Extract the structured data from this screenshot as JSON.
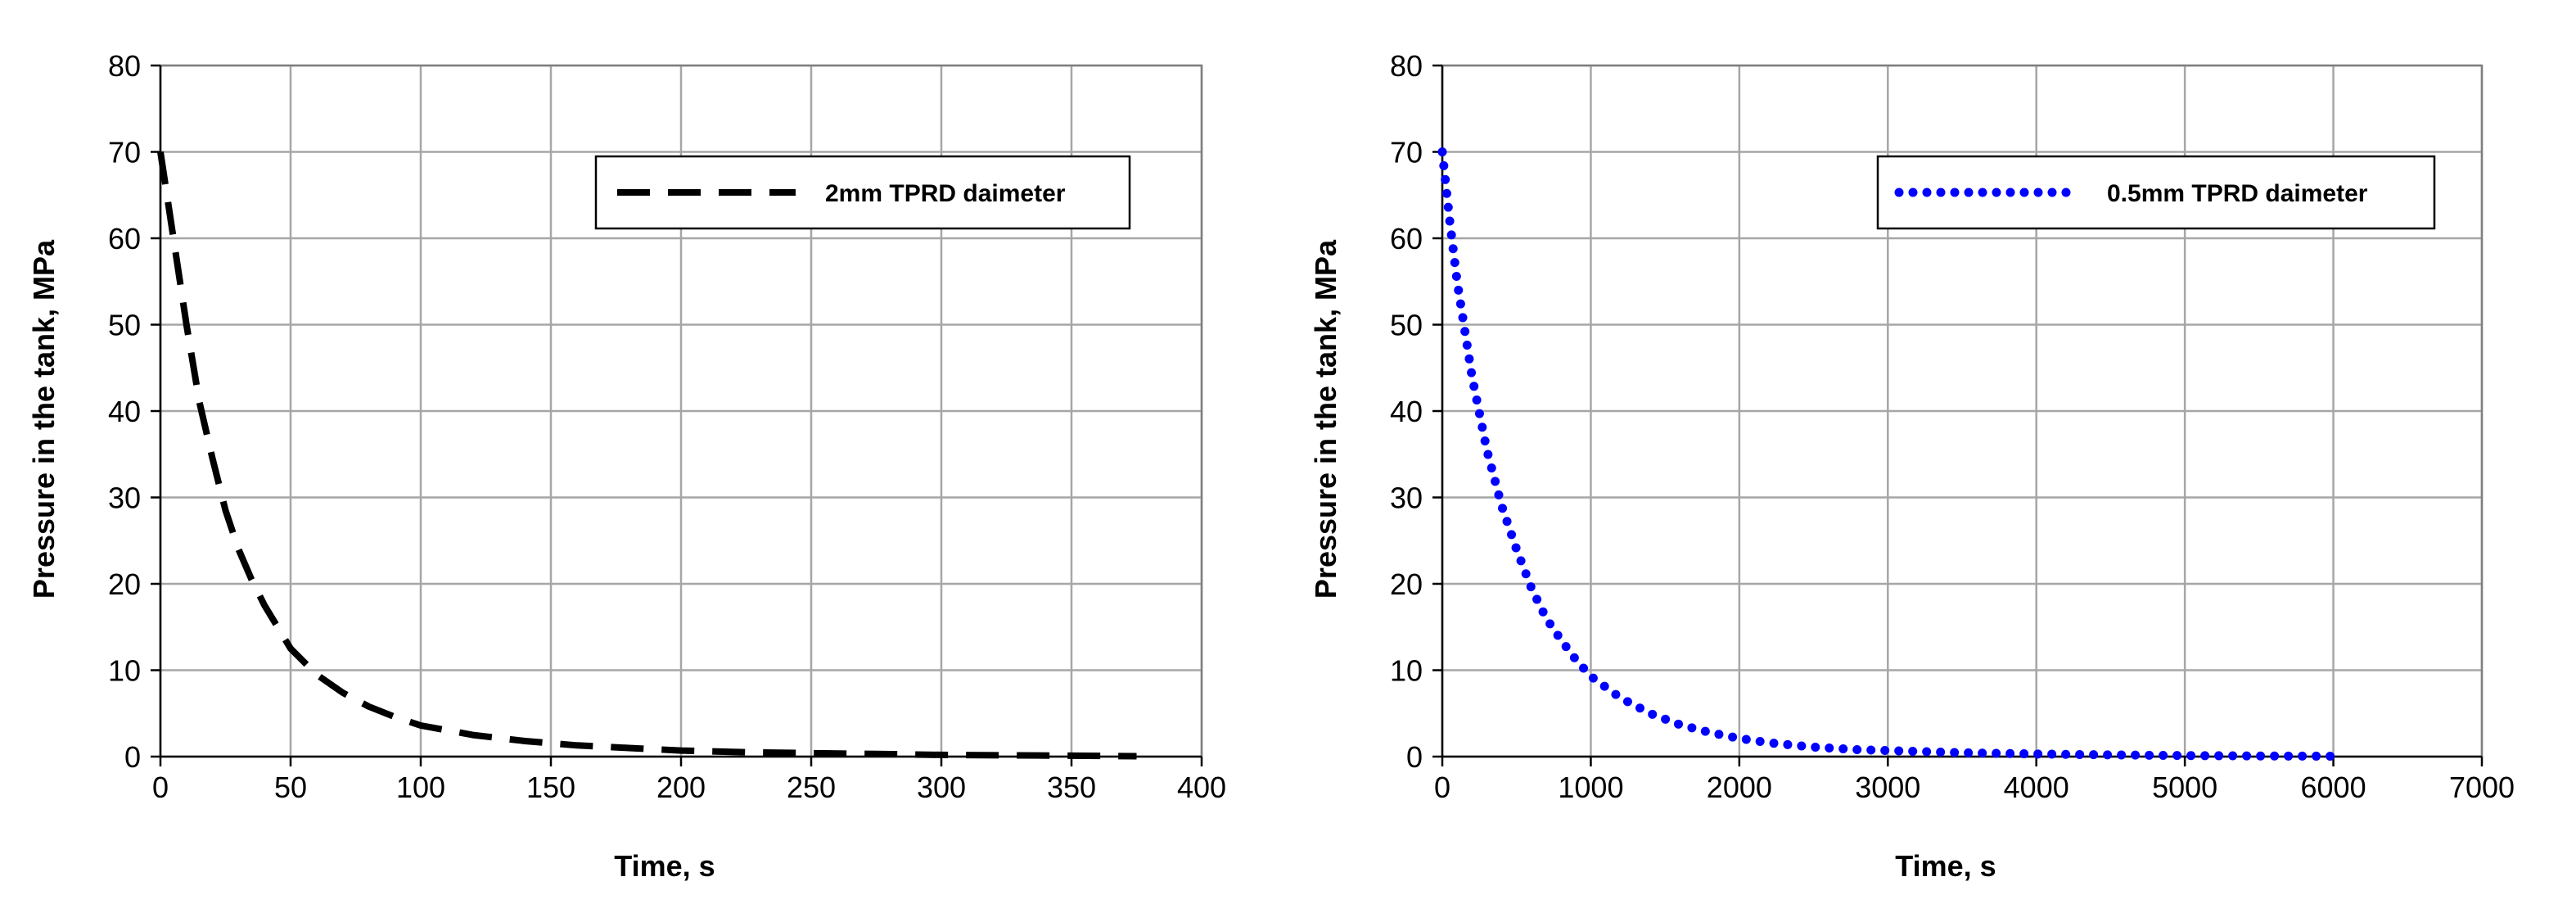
{
  "chart_data": [
    {
      "type": "line",
      "xlabel": "Time, s",
      "ylabel": "Pressure in the tank, MPa",
      "xlim": [
        0,
        400
      ],
      "ylim": [
        0,
        80
      ],
      "xticks": [
        0,
        50,
        100,
        150,
        200,
        250,
        300,
        350,
        400
      ],
      "yticks": [
        0,
        10,
        20,
        30,
        40,
        50,
        60,
        70,
        80
      ],
      "grid": true,
      "legend_position": "top-right",
      "series": [
        {
          "name": "2mm TPRD daimeter",
          "line_style": "dashed",
          "color": "#000000",
          "x": [
            0,
            5,
            10,
            15,
            20,
            25,
            30,
            35,
            40,
            50,
            60,
            70,
            80,
            90,
            100,
            120,
            140,
            160,
            180,
            200,
            225,
            250,
            275,
            300,
            325,
            350,
            375
          ],
          "y": [
            70,
            60,
            50,
            41,
            34.5,
            28.5,
            24,
            20.5,
            17.5,
            12.5,
            9.5,
            7.4,
            5.8,
            4.6,
            3.6,
            2.5,
            1.8,
            1.3,
            1.0,
            0.7,
            0.5,
            0.4,
            0.3,
            0.2,
            0.15,
            0.1,
            0.05
          ]
        }
      ]
    },
    {
      "type": "line",
      "xlabel": "Time, s",
      "ylabel": "Pressure in the tank, MPa",
      "xlim": [
        0,
        7000
      ],
      "ylim": [
        0,
        80
      ],
      "xticks": [
        0,
        1000,
        2000,
        3000,
        4000,
        5000,
        6000,
        7000
      ],
      "yticks": [
        0,
        10,
        20,
        30,
        40,
        50,
        60,
        70,
        80
      ],
      "grid": true,
      "legend_position": "top-right",
      "series": [
        {
          "name": "0.5mm TPRD daimeter",
          "line_style": "dotted",
          "color": "#0000ff",
          "x": [
            0,
            50,
            100,
            150,
            200,
            300,
            400,
            500,
            600,
            700,
            800,
            900,
            1000,
            1200,
            1400,
            1600,
            1800,
            2000,
            2200,
            2500,
            2800,
            3000,
            3500,
            4000,
            4500,
            5000,
            5500,
            6000
          ],
          "y": [
            70,
            62,
            55,
            49.5,
            44,
            35.5,
            29,
            24,
            19.5,
            16,
            13.5,
            11.2,
            9.3,
            6.8,
            5.0,
            3.7,
            2.8,
            2.1,
            1.6,
            1.1,
            0.8,
            0.7,
            0.45,
            0.3,
            0.2,
            0.12,
            0.08,
            0.05
          ]
        }
      ]
    }
  ]
}
